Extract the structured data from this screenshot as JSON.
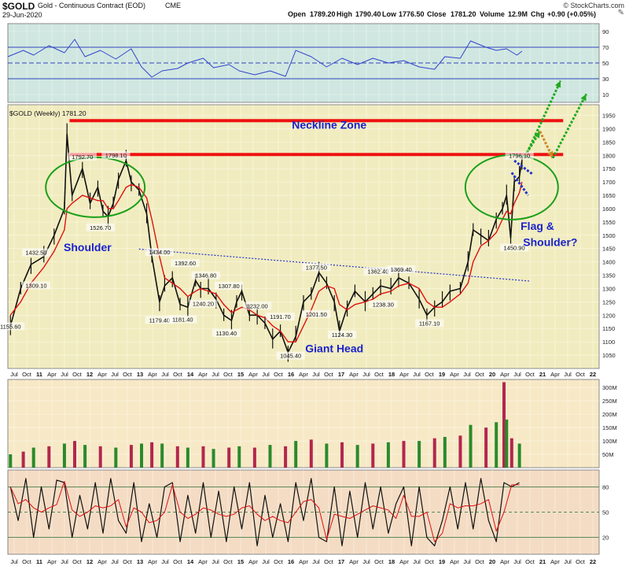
{
  "header": {
    "symbol": "$GOLD",
    "name": "Gold - Continuous Contract (EOD)",
    "exchange": "CME",
    "date": "29-Jun-2020",
    "copyright": "© StockCharts.com",
    "quote": {
      "open_label": "Open",
      "open": "1789.20",
      "high_label": "High",
      "high": "1790.40",
      "low_label": "Low",
      "low": "1776.50",
      "close_label": "Close",
      "close": "1781.20",
      "volume_label": "Volume",
      "volume": "12.9M",
      "chg_label": "Chg",
      "chg": "+0.90 (+0.05%)"
    }
  },
  "colors": {
    "price_bg": "#f1ecbf",
    "rsi_bg": "#cfe7e0",
    "volume_bg": "#f7e9c6",
    "stoch_bg": "#f4dcc4",
    "neckline": "#ee1111",
    "annotation_text": "#1a22cc",
    "ellipse": "#1aa01a",
    "ma_line": "#dd1111",
    "price_bars": "#111111",
    "trendline": "#2233cc",
    "arrow_green": "#22aa22",
    "arrow_orange": "#cc8822"
  },
  "chart_data": [
    {
      "type": "line",
      "panel": "RSI",
      "ylim": [
        0,
        100
      ],
      "yticks": [
        "90",
        "70",
        "50",
        "30",
        "10"
      ],
      "levels": [
        70,
        50,
        30
      ],
      "x": [
        2010.5,
        2010.8,
        2011.0,
        2011.3,
        2011.6,
        2011.8,
        2012.0,
        2012.3,
        2012.6,
        2012.9,
        2013.1,
        2013.3,
        2013.5,
        2013.8,
        2014.0,
        2014.3,
        2014.5,
        2014.8,
        2015.0,
        2015.3,
        2015.6,
        2015.9,
        2016.1,
        2016.4,
        2016.7,
        2017.0,
        2017.3,
        2017.6,
        2017.9,
        2018.2,
        2018.5,
        2018.8,
        2019.0,
        2019.3,
        2019.5,
        2019.8,
        2020.0,
        2020.2,
        2020.4,
        2020.5
      ],
      "values": [
        58,
        66,
        60,
        72,
        63,
        80,
        58,
        66,
        55,
        68,
        45,
        32,
        40,
        43,
        50,
        56,
        44,
        48,
        40,
        35,
        40,
        33,
        66,
        58,
        45,
        56,
        48,
        56,
        50,
        53,
        45,
        42,
        58,
        56,
        78,
        70,
        66,
        68,
        60,
        65
      ]
    },
    {
      "type": "line",
      "panel": "price",
      "title": "$GOLD (Weekly) 1781.20",
      "ylim": [
        1000,
        1990
      ],
      "yticks": [
        "1950",
        "1900",
        "1850",
        "1800",
        "1750",
        "1700",
        "1650",
        "1600",
        "1550",
        "1500",
        "1450",
        "1400",
        "1350",
        "1300",
        "1250",
        "1200",
        "1150",
        "1100",
        "1050"
      ],
      "xticks": [
        "Jul",
        "Oct",
        "11",
        "Apr",
        "Jul",
        "Oct",
        "12",
        "Apr",
        "Jul",
        "Oct",
        "13",
        "Apr",
        "Jul",
        "Oct",
        "14",
        "Apr",
        "Jul",
        "Oct",
        "15",
        "Apr",
        "Jul",
        "Oct",
        "16",
        "Apr",
        "Jul",
        "Oct",
        "17",
        "Apr",
        "Jul",
        "Oct",
        "18",
        "Apr",
        "Jul",
        "Oct",
        "19",
        "Apr",
        "Jul",
        "Oct",
        "20",
        "Apr",
        "Jul",
        "Oct",
        "21",
        "Apr",
        "Jul",
        "Oct",
        "22"
      ],
      "xlim": [
        2010.5,
        2022.0
      ],
      "x": [
        2010.55,
        2010.75,
        2010.95,
        2011.2,
        2011.4,
        2011.6,
        2011.65,
        2011.75,
        2011.95,
        2012.1,
        2012.25,
        2012.35,
        2012.45,
        2012.55,
        2012.65,
        2012.8,
        2012.9,
        2013.05,
        2013.2,
        2013.3,
        2013.45,
        2013.55,
        2013.7,
        2013.85,
        2014.0,
        2014.15,
        2014.25,
        2014.4,
        2014.55,
        2014.7,
        2014.85,
        2014.95,
        2015.05,
        2015.2,
        2015.35,
        2015.5,
        2015.65,
        2015.8,
        2015.95,
        2016.1,
        2016.25,
        2016.4,
        2016.55,
        2016.7,
        2016.85,
        2016.95,
        2017.1,
        2017.25,
        2017.45,
        2017.6,
        2017.75,
        2017.95,
        2018.1,
        2018.3,
        2018.5,
        2018.65,
        2018.8,
        2018.95,
        2019.1,
        2019.3,
        2019.45,
        2019.55,
        2019.7,
        2019.85,
        2020.0,
        2020.12,
        2020.2,
        2020.28,
        2020.35,
        2020.45,
        2020.5
      ],
      "values": [
        1160,
        1300,
        1390,
        1420,
        1500,
        1600,
        1880,
        1650,
        1750,
        1620,
        1680,
        1590,
        1570,
        1620,
        1710,
        1780,
        1700,
        1670,
        1580,
        1420,
        1250,
        1310,
        1340,
        1240,
        1230,
        1330,
        1300,
        1300,
        1260,
        1200,
        1180,
        1250,
        1290,
        1200,
        1200,
        1170,
        1110,
        1140,
        1060,
        1120,
        1250,
        1280,
        1360,
        1320,
        1250,
        1140,
        1230,
        1290,
        1250,
        1280,
        1310,
        1300,
        1340,
        1320,
        1260,
        1200,
        1230,
        1250,
        1290,
        1300,
        1400,
        1520,
        1500,
        1480,
        1560,
        1600,
        1650,
        1490,
        1700,
        1720,
        1781
      ],
      "ma": [
        1200,
        1250,
        1320,
        1380,
        1440,
        1520,
        1600,
        1620,
        1650,
        1640,
        1630,
        1630,
        1600,
        1600,
        1630,
        1680,
        1690,
        1680,
        1640,
        1560,
        1420,
        1340,
        1320,
        1300,
        1270,
        1290,
        1300,
        1290,
        1280,
        1240,
        1210,
        1220,
        1230,
        1220,
        1200,
        1190,
        1160,
        1140,
        1100,
        1100,
        1160,
        1220,
        1290,
        1310,
        1300,
        1240,
        1220,
        1240,
        1250,
        1260,
        1280,
        1290,
        1310,
        1320,
        1300,
        1250,
        1230,
        1230,
        1250,
        1280,
        1320,
        1400,
        1460,
        1480,
        1510,
        1560,
        1590,
        1580,
        1620,
        1660,
        1700
      ],
      "data_labels": [
        {
          "x": 2010.55,
          "y": 1155.6,
          "label": "1155.60"
        },
        {
          "x": 2011.05,
          "y": 1309.1,
          "label": "1309.10"
        },
        {
          "x": 2011.05,
          "y": 1432.5,
          "label": "1432.50"
        },
        {
          "x": 2011.95,
          "y": 1792.7,
          "label": "1792.70"
        },
        {
          "x": 2012.6,
          "y": 1798.1,
          "label": "1798.10"
        },
        {
          "x": 2012.3,
          "y": 1526.7,
          "label": "1526.70"
        },
        {
          "x": 2013.45,
          "y": 1434.0,
          "label": "1434.00"
        },
        {
          "x": 2013.45,
          "y": 1179.4,
          "label": "1179.40"
        },
        {
          "x": 2013.95,
          "y": 1392.6,
          "label": "1392.60"
        },
        {
          "x": 2013.9,
          "y": 1181.4,
          "label": "1181.40"
        },
        {
          "x": 2014.35,
          "y": 1346.8,
          "label": "1346.80"
        },
        {
          "x": 2014.3,
          "y": 1240.2,
          "label": "1240.20"
        },
        {
          "x": 2014.8,
          "y": 1307.8,
          "label": "1307.80"
        },
        {
          "x": 2014.75,
          "y": 1130.4,
          "label": "1130.40"
        },
        {
          "x": 2015.35,
          "y": 1232.0,
          "label": "1232.00"
        },
        {
          "x": 2015.8,
          "y": 1191.7,
          "label": "1191.70"
        },
        {
          "x": 2016.0,
          "y": 1045.4,
          "label": "1045.40"
        },
        {
          "x": 2016.5,
          "y": 1201.5,
          "label": "1201.50"
        },
        {
          "x": 2016.5,
          "y": 1377.5,
          "label": "1377.50"
        },
        {
          "x": 2017.0,
          "y": 1124.3,
          "label": "1124.30"
        },
        {
          "x": 2017.7,
          "y": 1362.4,
          "label": "1362.40"
        },
        {
          "x": 2017.8,
          "y": 1238.3,
          "label": "1238.30"
        },
        {
          "x": 2018.15,
          "y": 1369.4,
          "label": "1369.40"
        },
        {
          "x": 2018.7,
          "y": 1167.1,
          "label": "1167.10"
        },
        {
          "x": 2020.35,
          "y": 1450.9,
          "label": "1450.90"
        },
        {
          "x": 2020.45,
          "y": 1796.1,
          "label": "1796.10"
        }
      ],
      "annotations": [
        {
          "text": "Neckline Zone",
          "x": 2016.75,
          "y": 1900
        },
        {
          "text": "Shoulder",
          "x": 2012.05,
          "y": 1440
        },
        {
          "text": "Giant Head",
          "x": 2016.85,
          "y": 1060
        },
        {
          "text": "Flag &",
          "x": 2020.8,
          "y": 1520
        },
        {
          "text": "Shoulder?",
          "x": 2021.05,
          "y": 1460
        }
      ]
    },
    {
      "type": "bar",
      "panel": "volume",
      "ylim": [
        0,
        330
      ],
      "yticks": [
        "300M",
        "250M",
        "200M",
        "150M",
        "100M",
        "50M"
      ],
      "x": [
        2010.55,
        2010.8,
        2011.0,
        2011.3,
        2011.6,
        2011.8,
        2012.0,
        2012.3,
        2012.6,
        2012.9,
        2013.1,
        2013.3,
        2013.5,
        2013.8,
        2014.0,
        2014.3,
        2014.5,
        2014.8,
        2015.0,
        2015.3,
        2015.6,
        2015.9,
        2016.1,
        2016.4,
        2016.7,
        2017.0,
        2017.3,
        2017.6,
        2017.9,
        2018.2,
        2018.5,
        2018.8,
        2019.0,
        2019.3,
        2019.5,
        2019.8,
        2020.0,
        2020.15,
        2020.2,
        2020.3,
        2020.45
      ],
      "values": [
        50,
        60,
        75,
        80,
        90,
        100,
        85,
        80,
        75,
        85,
        90,
        95,
        90,
        80,
        75,
        80,
        70,
        75,
        80,
        75,
        85,
        80,
        100,
        105,
        90,
        95,
        85,
        90,
        95,
        100,
        100,
        110,
        115,
        120,
        160,
        150,
        170,
        320,
        180,
        110,
        90
      ]
    },
    {
      "type": "line",
      "panel": "stochastic",
      "ylim": [
        0,
        100
      ],
      "yticks": [
        "80",
        "50",
        "20"
      ],
      "levels": [
        80,
        50,
        20
      ],
      "x": [
        2010.55,
        2010.7,
        2010.85,
        2011.0,
        2011.15,
        2011.3,
        2011.45,
        2011.6,
        2011.75,
        2011.9,
        2012.05,
        2012.2,
        2012.35,
        2012.5,
        2012.65,
        2012.8,
        2012.95,
        2013.1,
        2013.25,
        2013.4,
        2013.55,
        2013.7,
        2013.85,
        2014.0,
        2014.15,
        2014.3,
        2014.45,
        2014.6,
        2014.75,
        2014.9,
        2015.05,
        2015.2,
        2015.35,
        2015.5,
        2015.65,
        2015.8,
        2015.95,
        2016.1,
        2016.25,
        2016.4,
        2016.55,
        2016.7,
        2016.85,
        2017.0,
        2017.15,
        2017.3,
        2017.45,
        2017.6,
        2017.75,
        2017.9,
        2018.05,
        2018.2,
        2018.35,
        2018.5,
        2018.65,
        2018.8,
        2018.95,
        2019.1,
        2019.25,
        2019.4,
        2019.55,
        2019.7,
        2019.85,
        2020.0,
        2020.15,
        2020.3,
        2020.45
      ],
      "values": [
        80,
        40,
        90,
        20,
        80,
        30,
        88,
        85,
        20,
        70,
        30,
        85,
        25,
        90,
        40,
        25,
        85,
        15,
        60,
        20,
        80,
        85,
        15,
        70,
        25,
        85,
        20,
        75,
        15,
        80,
        30,
        85,
        10,
        70,
        20,
        60,
        15,
        85,
        40,
        90,
        20,
        15,
        80,
        10,
        75,
        20,
        85,
        30,
        80,
        25,
        60,
        80,
        10,
        80,
        20,
        10,
        40,
        80,
        30,
        85,
        30,
        90,
        40,
        15,
        85,
        80,
        85
      ]
    }
  ]
}
